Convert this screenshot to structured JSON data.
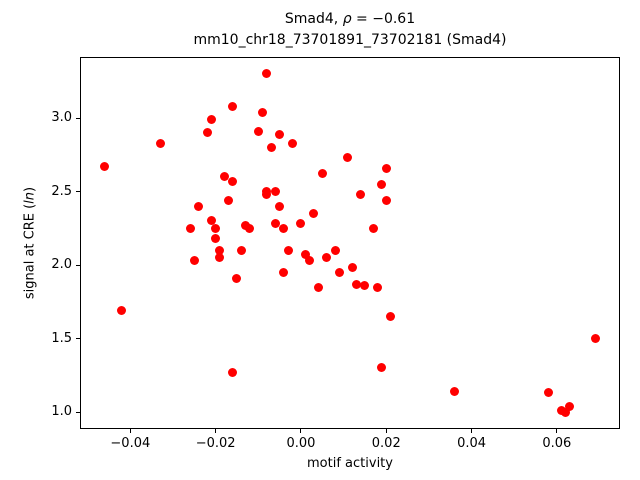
{
  "title": {
    "part1": "Smad4, ",
    "rho": "ρ",
    "part2": " = −0.61",
    "line2": "mm10_chr18_73701891_73702181 (Smad4)"
  },
  "ylabel_parts": {
    "prefix": "signal at CRE (",
    "italic": "ln",
    "suffix": ")"
  },
  "chart_data": {
    "type": "scatter",
    "title": "Smad4, ρ = −0.61",
    "subtitle": "mm10_chr18_73701891_73702181 (Smad4)",
    "xlabel": "motif activity",
    "ylabel": "signal at CRE (ln)",
    "xlim": [
      -0.0518,
      0.0748
    ],
    "ylim": [
      0.885,
      3.415
    ],
    "xticks": [
      -0.04,
      -0.02,
      0.0,
      0.02,
      0.04,
      0.06
    ],
    "xtick_labels": [
      "−0.04",
      "−0.02",
      "0.00",
      "0.02",
      "0.04",
      "0.06"
    ],
    "yticks": [
      1.0,
      1.5,
      2.0,
      2.5,
      3.0
    ],
    "ytick_labels": [
      "1.0",
      "1.5",
      "2.0",
      "2.5",
      "3.0"
    ],
    "marker_color": "#ff0000",
    "marker_diameter_px": 9,
    "grid": false,
    "legend": "none",
    "points": [
      [
        -0.046,
        2.67
      ],
      [
        -0.042,
        1.69
      ],
      [
        -0.033,
        2.83
      ],
      [
        -0.026,
        2.25
      ],
      [
        -0.025,
        2.03
      ],
      [
        -0.024,
        2.4
      ],
      [
        -0.022,
        2.9
      ],
      [
        -0.021,
        2.99
      ],
      [
        -0.021,
        2.3
      ],
      [
        -0.02,
        2.25
      ],
      [
        -0.02,
        2.18
      ],
      [
        -0.019,
        2.1
      ],
      [
        -0.019,
        2.05
      ],
      [
        -0.018,
        2.6
      ],
      [
        -0.017,
        2.44
      ],
      [
        -0.016,
        2.57
      ],
      [
        -0.016,
        3.08
      ],
      [
        -0.016,
        1.27
      ],
      [
        -0.015,
        1.91
      ],
      [
        -0.014,
        2.1
      ],
      [
        -0.013,
        2.27
      ],
      [
        -0.012,
        2.25
      ],
      [
        -0.01,
        2.91
      ],
      [
        -0.009,
        3.04
      ],
      [
        -0.008,
        3.3
      ],
      [
        -0.008,
        2.5
      ],
      [
        -0.008,
        2.48
      ],
      [
        -0.007,
        2.8
      ],
      [
        -0.006,
        2.5
      ],
      [
        -0.006,
        2.28
      ],
      [
        -0.005,
        2.89
      ],
      [
        -0.005,
        2.4
      ],
      [
        -0.004,
        2.25
      ],
      [
        -0.004,
        1.95
      ],
      [
        -0.003,
        2.1
      ],
      [
        -0.002,
        2.83
      ],
      [
        0.0,
        2.28
      ],
      [
        0.001,
        2.07
      ],
      [
        0.002,
        2.03
      ],
      [
        0.003,
        2.35
      ],
      [
        0.004,
        1.85
      ],
      [
        0.005,
        2.62
      ],
      [
        0.006,
        2.05
      ],
      [
        0.008,
        2.1
      ],
      [
        0.009,
        1.95
      ],
      [
        0.011,
        2.73
      ],
      [
        0.012,
        1.98
      ],
      [
        0.013,
        1.87
      ],
      [
        0.014,
        2.48
      ],
      [
        0.015,
        1.86
      ],
      [
        0.017,
        2.25
      ],
      [
        0.018,
        1.85
      ],
      [
        0.019,
        2.55
      ],
      [
        0.019,
        1.3
      ],
      [
        0.02,
        2.66
      ],
      [
        0.02,
        2.44
      ],
      [
        0.021,
        1.65
      ],
      [
        0.036,
        1.14
      ],
      [
        0.058,
        1.13
      ],
      [
        0.061,
        1.01
      ],
      [
        0.062,
        1.0
      ],
      [
        0.063,
        1.04
      ],
      [
        0.069,
        1.5
      ]
    ]
  }
}
